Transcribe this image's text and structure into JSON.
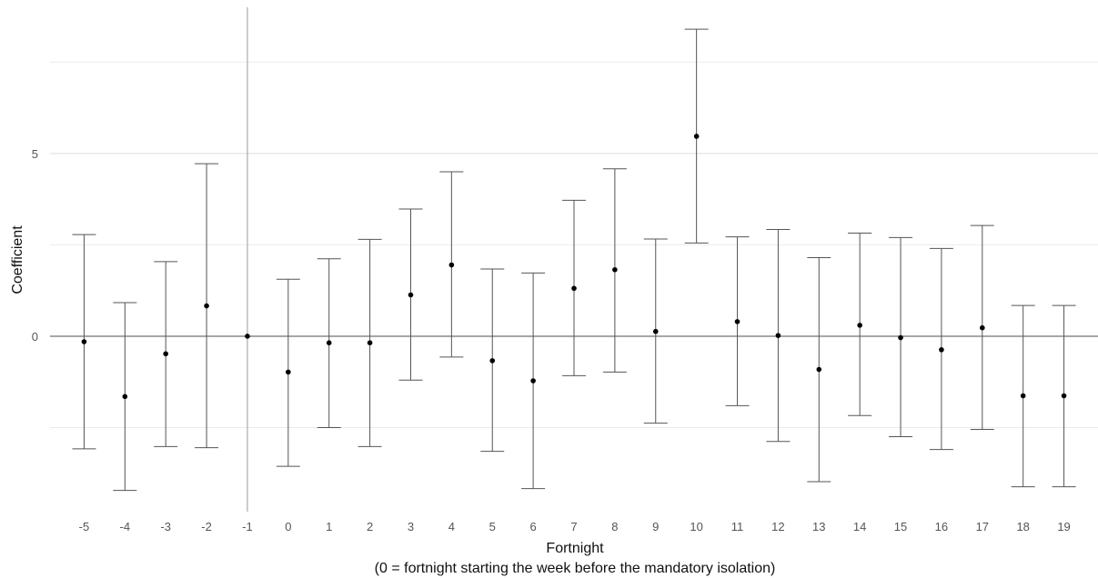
{
  "chart_data": {
    "type": "scatter",
    "xlabel_line1": "Fortnight",
    "xlabel_line2": "(0 = fortnight starting the week before the mandatory isolation)",
    "ylabel": "Coefficient",
    "x": [
      -5,
      -4,
      -3,
      -2,
      -1,
      0,
      1,
      2,
      3,
      4,
      5,
      6,
      7,
      8,
      9,
      10,
      11,
      12,
      13,
      14,
      15,
      16,
      17,
      18,
      19
    ],
    "estimate": [
      -0.15,
      -1.65,
      -0.48,
      0.83,
      0.0,
      -0.98,
      -0.18,
      -0.18,
      1.13,
      1.95,
      -0.67,
      -1.22,
      1.31,
      1.82,
      0.13,
      5.47,
      0.4,
      0.02,
      -0.91,
      0.3,
      -0.04,
      -0.37,
      0.23,
      -1.63,
      -1.63
    ],
    "ci_lower": [
      -3.08,
      -4.22,
      -3.02,
      -3.05,
      0.0,
      -3.56,
      -2.5,
      -3.02,
      -1.2,
      -0.57,
      -3.15,
      -4.17,
      -1.08,
      -0.98,
      -2.38,
      2.55,
      -1.9,
      -2.88,
      -3.98,
      -2.17,
      -2.75,
      -3.1,
      -2.55,
      -4.12,
      -4.12
    ],
    "ci_upper": [
      2.78,
      0.92,
      2.04,
      4.72,
      0.0,
      1.56,
      2.12,
      2.65,
      3.48,
      4.5,
      1.84,
      1.73,
      3.72,
      4.58,
      2.66,
      8.4,
      2.72,
      2.92,
      2.15,
      2.82,
      2.7,
      2.4,
      3.03,
      0.84,
      0.84
    ],
    "y_ticks": [
      0,
      5
    ],
    "ylim": [
      -4.8,
      9.0
    ],
    "xlim": [
      -5.5,
      19.5
    ],
    "reference_hline": 0,
    "reference_vline": -1,
    "grid": true
  }
}
